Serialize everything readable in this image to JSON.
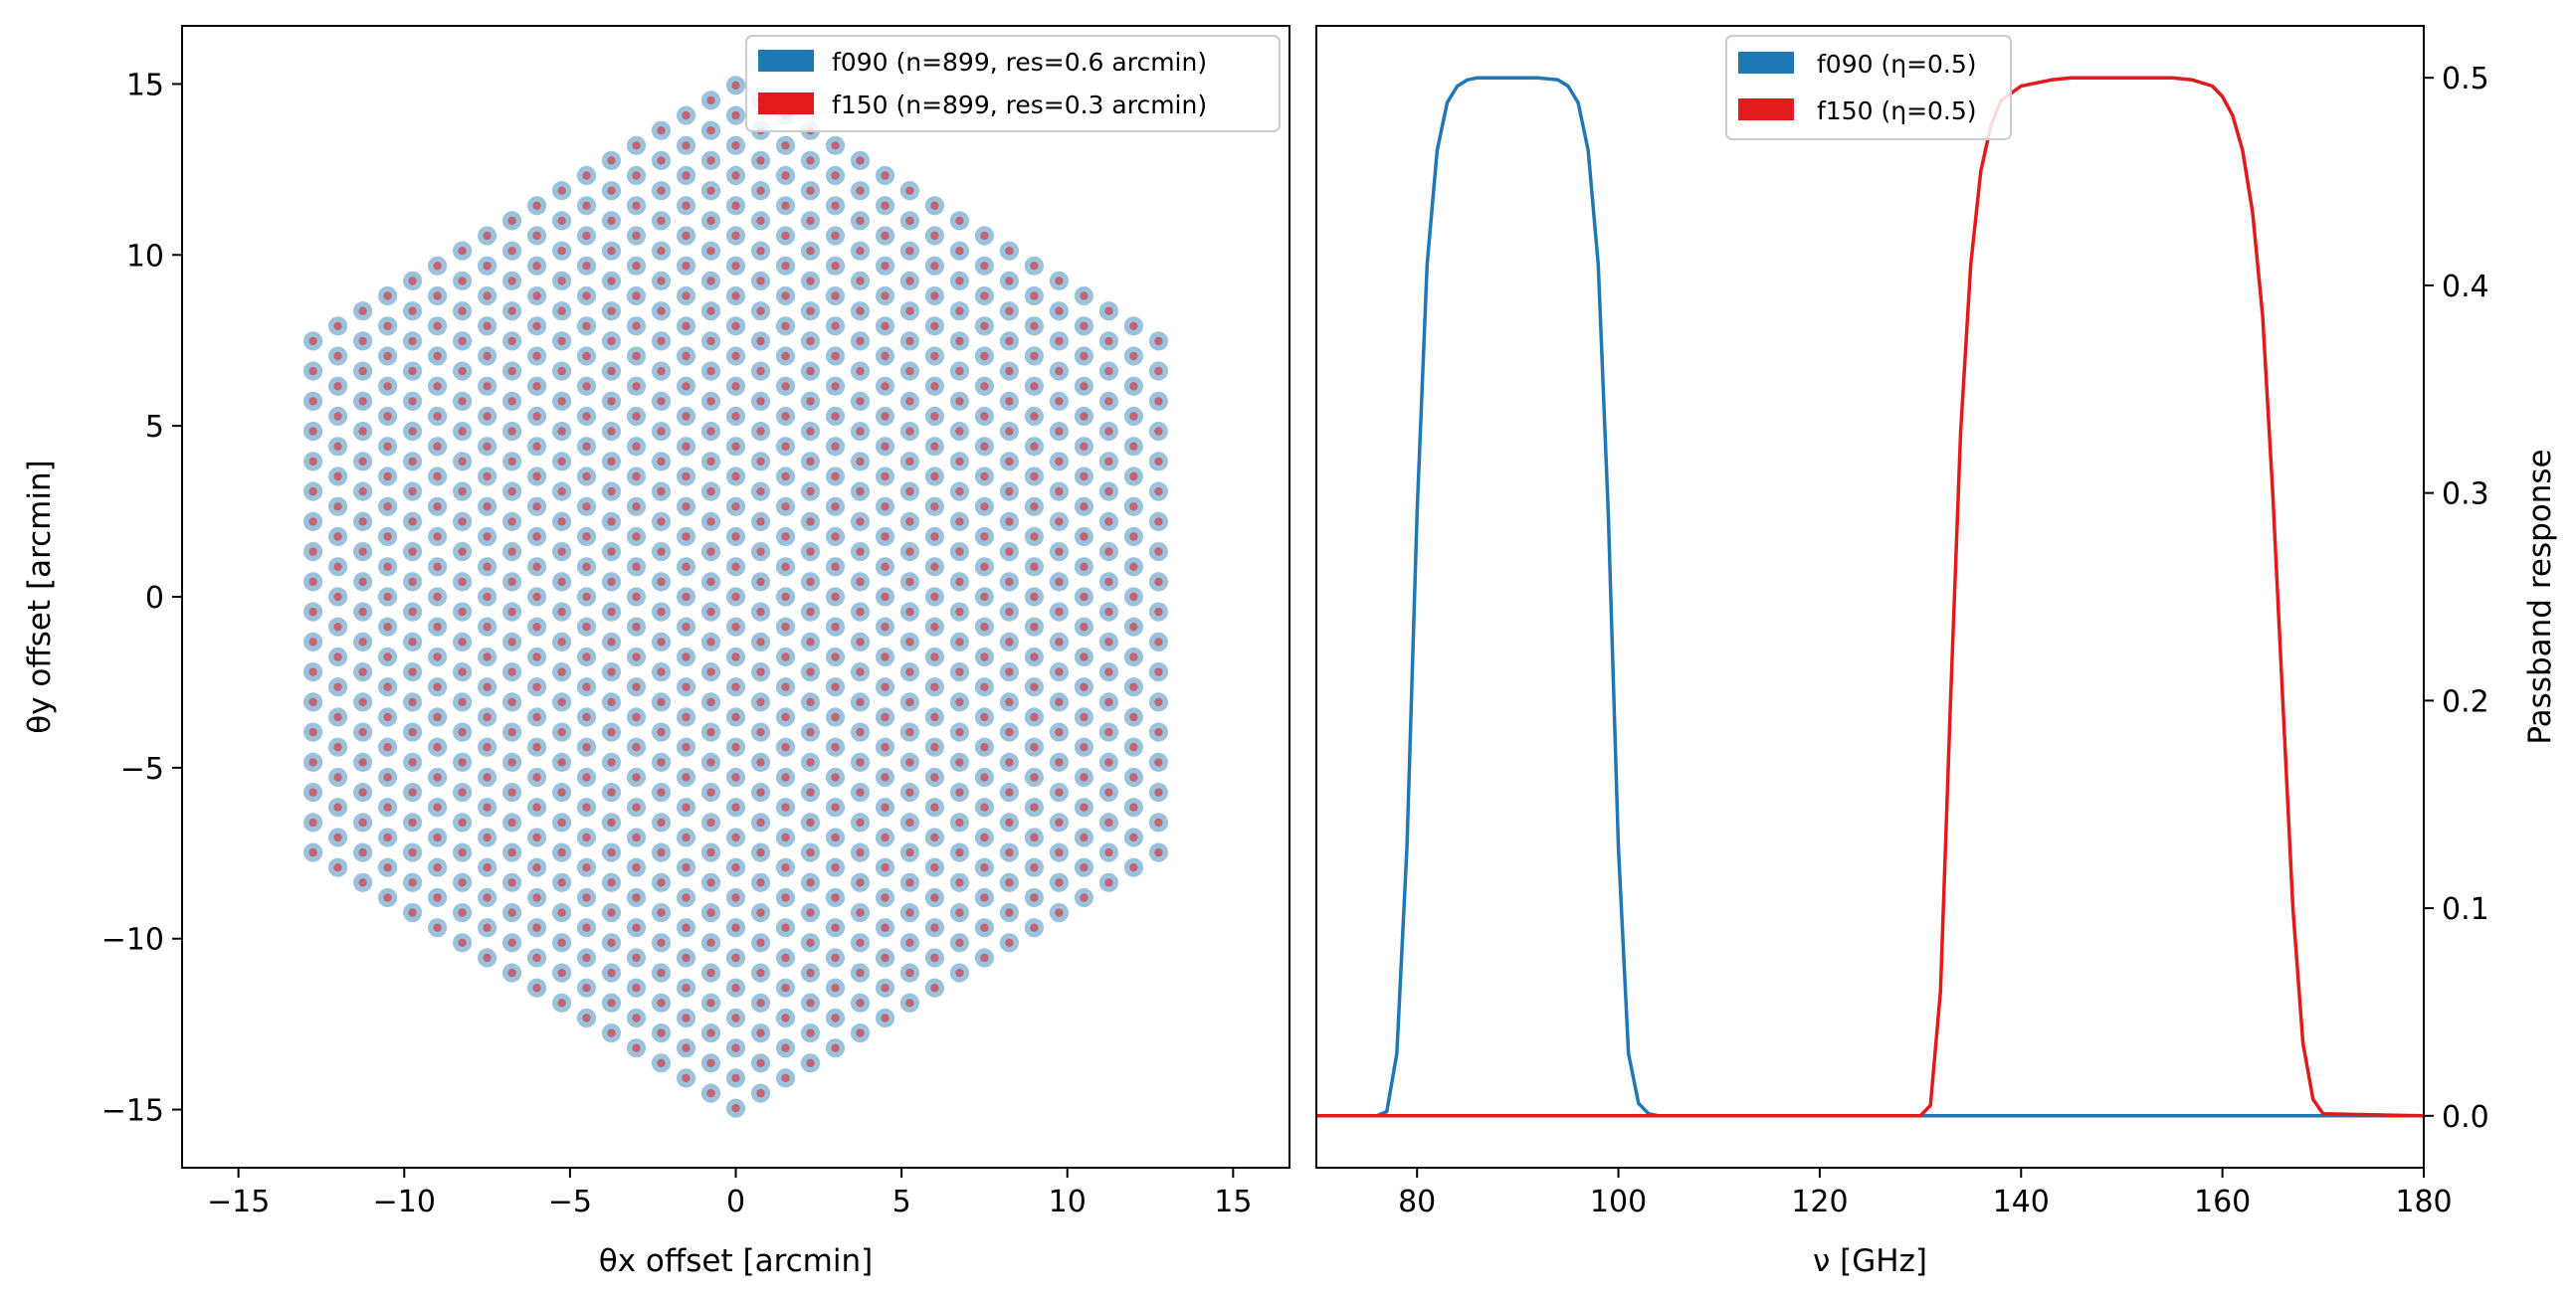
{
  "chart_data": [
    {
      "type": "scatter",
      "title": "",
      "xlabel": "θx offset [arcmin]",
      "ylabel": "θy offset [arcmin]",
      "xlim": [
        -16.7,
        16.7
      ],
      "ylim": [
        -16.7,
        16.7
      ],
      "xticks": [
        -15,
        -10,
        -5,
        0,
        5,
        10,
        15
      ],
      "yticks": [
        -15,
        -10,
        -5,
        0,
        5,
        10,
        15
      ],
      "xtick_labels": [
        "−15",
        "−10",
        "−5",
        "0",
        "5",
        "10",
        "15"
      ],
      "ytick_labels": [
        "−15",
        "−10",
        "−5",
        "0",
        "5",
        "10",
        "15"
      ],
      "grid": false,
      "legend_position": "top-right",
      "array": {
        "shape": "hexagon",
        "circumradius_arcmin": 15,
        "pitch_x_arcmin": 0.75,
        "pitch_y_arcmin": 0.88
      },
      "series": [
        {
          "name": "f090 (n=899, res=0.6 arcmin)",
          "n": 899,
          "res_arcmin": 0.6,
          "color": "#1f77b4"
        },
        {
          "name": "f150 (n=899, res=0.3 arcmin)",
          "n": 899,
          "res_arcmin": 0.3,
          "color": "#e31a1c"
        }
      ]
    },
    {
      "type": "line",
      "title": "",
      "xlabel": "ν [GHz]",
      "ylabel": "Passband response",
      "xlim": [
        70,
        180
      ],
      "ylim": [
        -0.025,
        0.525
      ],
      "xticks": [
        80,
        100,
        120,
        140,
        160,
        180
      ],
      "yticks": [
        0.0,
        0.1,
        0.2,
        0.3,
        0.4,
        0.5
      ],
      "xtick_labels": [
        "80",
        "100",
        "120",
        "140",
        "160",
        "180"
      ],
      "ytick_labels": [
        "0.0",
        "0.1",
        "0.2",
        "0.3",
        "0.4",
        "0.5"
      ],
      "y_axis_side": "right",
      "grid": false,
      "legend_position": "top-center",
      "series": [
        {
          "name": "f090 (η=0.5)",
          "color": "#1f77b4",
          "peak": 0.5,
          "x": [
            70,
            76,
            77,
            78,
            79,
            80,
            81,
            82,
            83,
            84,
            85,
            86,
            88,
            92,
            94,
            95,
            96,
            97,
            98,
            99,
            100,
            101,
            102,
            103,
            104,
            180
          ],
          "y": [
            0,
            0,
            0.002,
            0.03,
            0.13,
            0.29,
            0.41,
            0.465,
            0.488,
            0.496,
            0.499,
            0.5,
            0.5,
            0.5,
            0.499,
            0.496,
            0.488,
            0.465,
            0.41,
            0.29,
            0.13,
            0.03,
            0.006,
            0.001,
            0,
            0
          ]
        },
        {
          "name": "f150 (η=0.5)",
          "color": "#e31a1c",
          "peak": 0.5,
          "x": [
            70,
            130,
            131,
            132,
            133,
            134,
            135,
            136,
            137,
            138,
            140,
            143,
            145,
            155,
            157,
            159,
            160,
            161,
            162,
            163,
            164,
            165,
            166,
            167,
            168,
            169,
            170,
            180
          ],
          "y": [
            0,
            0,
            0.005,
            0.06,
            0.2,
            0.33,
            0.41,
            0.455,
            0.477,
            0.489,
            0.496,
            0.499,
            0.5,
            0.5,
            0.499,
            0.496,
            0.491,
            0.482,
            0.465,
            0.435,
            0.385,
            0.3,
            0.2,
            0.1,
            0.035,
            0.008,
            0.001,
            0
          ]
        }
      ]
    }
  ]
}
